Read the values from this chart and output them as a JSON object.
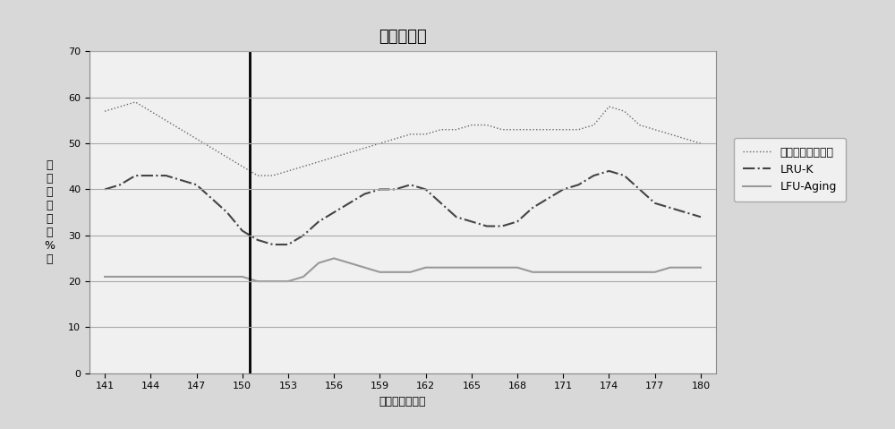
{
  "title": "缓存命中率",
  "xlabel": "仿真时间（秒）",
  "ylabel": "缓\n存\n命\n中\n率\n（\n%\n）",
  "xlim": [
    140,
    181
  ],
  "ylim": [
    0,
    70
  ],
  "yticks": [
    0,
    10,
    20,
    30,
    40,
    50,
    60,
    70
  ],
  "xticks": [
    141,
    144,
    147,
    150,
    153,
    156,
    159,
    162,
    165,
    168,
    171,
    174,
    177,
    180
  ],
  "vline_x": 150.5,
  "series": [
    {
      "label": "分类的流行度策略",
      "style": "dotted",
      "color": "#666666",
      "linewidth": 1.0,
      "x": [
        141,
        142,
        143,
        144,
        145,
        146,
        147,
        148,
        149,
        150,
        151,
        152,
        153,
        154,
        155,
        156,
        157,
        158,
        159,
        160,
        161,
        162,
        163,
        164,
        165,
        166,
        167,
        168,
        169,
        170,
        171,
        172,
        173,
        174,
        175,
        176,
        177,
        178,
        179,
        180
      ],
      "y": [
        57,
        58,
        59,
        57,
        55,
        53,
        51,
        49,
        47,
        45,
        43,
        43,
        44,
        45,
        46,
        47,
        48,
        49,
        50,
        51,
        52,
        52,
        53,
        53,
        54,
        54,
        53,
        53,
        53,
        53,
        53,
        53,
        54,
        58,
        57,
        54,
        53,
        52,
        51,
        50
      ]
    },
    {
      "label": "LRU-K",
      "style": "dashdot",
      "color": "#444444",
      "linewidth": 1.5,
      "x": [
        141,
        142,
        143,
        144,
        145,
        146,
        147,
        148,
        149,
        150,
        151,
        152,
        153,
        154,
        155,
        156,
        157,
        158,
        159,
        160,
        161,
        162,
        163,
        164,
        165,
        166,
        167,
        168,
        169,
        170,
        171,
        172,
        173,
        174,
        175,
        176,
        177,
        178,
        179,
        180
      ],
      "y": [
        40,
        41,
        43,
        43,
        43,
        42,
        41,
        38,
        35,
        31,
        29,
        28,
        28,
        30,
        33,
        35,
        37,
        39,
        40,
        40,
        41,
        40,
        37,
        34,
        33,
        32,
        32,
        33,
        36,
        38,
        40,
        41,
        43,
        44,
        43,
        40,
        37,
        36,
        35,
        34
      ]
    },
    {
      "label": "LFU-Aging",
      "style": "solid",
      "color": "#999999",
      "linewidth": 1.5,
      "x": [
        141,
        142,
        143,
        144,
        145,
        146,
        147,
        148,
        149,
        150,
        151,
        152,
        153,
        154,
        155,
        156,
        157,
        158,
        159,
        160,
        161,
        162,
        163,
        164,
        165,
        166,
        167,
        168,
        169,
        170,
        171,
        172,
        173,
        174,
        175,
        176,
        177,
        178,
        179,
        180
      ],
      "y": [
        21,
        21,
        21,
        21,
        21,
        21,
        21,
        21,
        21,
        21,
        20,
        20,
        20,
        21,
        24,
        25,
        24,
        23,
        22,
        22,
        22,
        23,
        23,
        23,
        23,
        23,
        23,
        23,
        22,
        22,
        22,
        22,
        22,
        22,
        22,
        22,
        22,
        23,
        23,
        23
      ]
    }
  ],
  "outer_bg": "#d8d8d8",
  "inner_bg": "#f0f0f0",
  "grid_color": "#aaaaaa",
  "legend_fontsize": 9,
  "title_fontsize": 13,
  "axis_fontsize": 9,
  "tick_fontsize": 8
}
